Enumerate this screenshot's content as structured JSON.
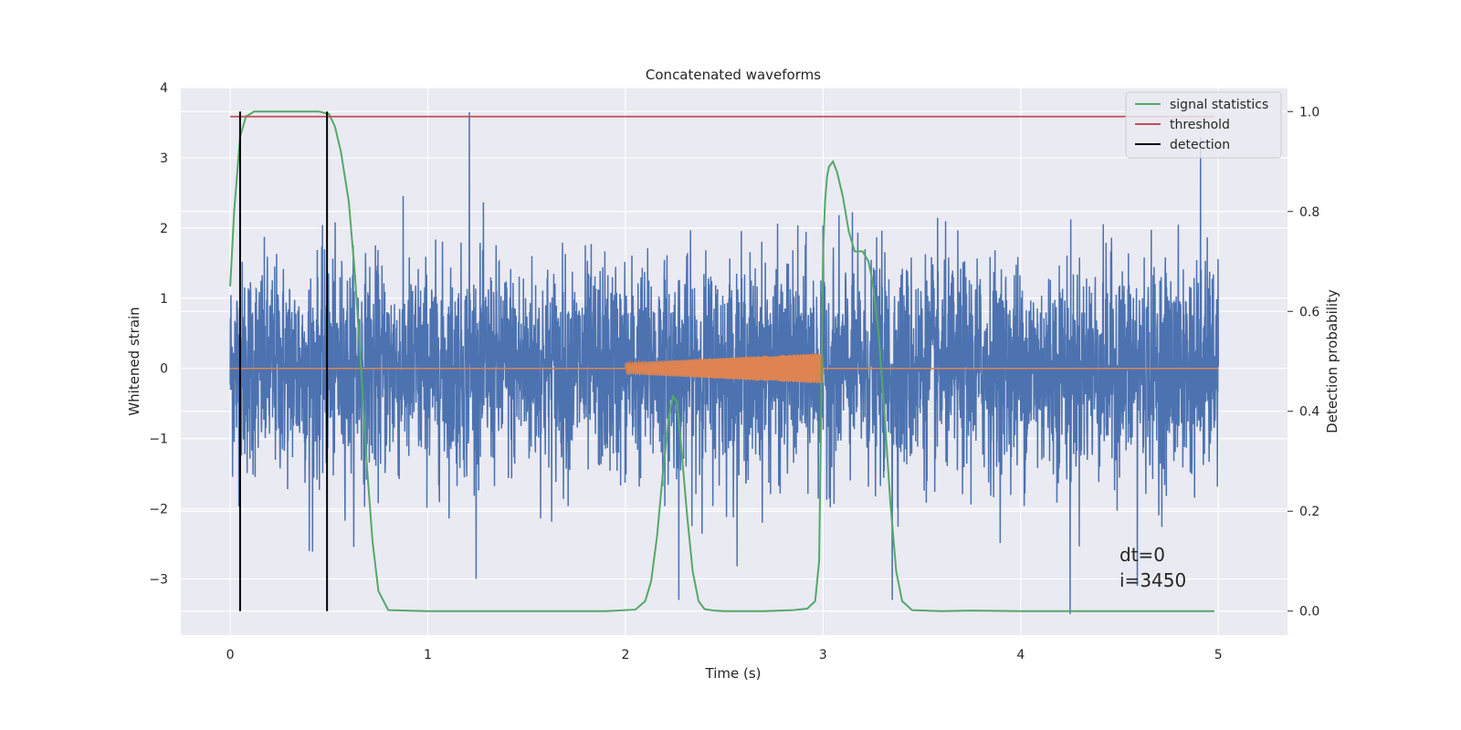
{
  "chart_data": {
    "type": "line",
    "title": "Concatenated waveforms",
    "xlabel": "Time (s)",
    "ylabel": "Whitened strain",
    "y2label": "Detection probability",
    "xlim": [
      -0.25,
      5.35
    ],
    "ylim": [
      -3.8,
      4.0
    ],
    "y2lim": [
      -0.048,
      1.048
    ],
    "xticks": [
      0,
      1,
      2,
      3,
      4,
      5
    ],
    "yticks": [
      -3,
      -2,
      -1,
      0,
      1,
      2,
      3,
      4
    ],
    "y2ticks": [
      0.0,
      0.2,
      0.4,
      0.6,
      0.8,
      1.0
    ],
    "xtick_labels": [
      "0",
      "1",
      "2",
      "3",
      "4",
      "5"
    ],
    "ytick_labels": [
      "−3",
      "−2",
      "−1",
      "0",
      "1",
      "2",
      "3",
      "4"
    ],
    "y2tick_labels": [
      "0.0",
      "0.2",
      "0.4",
      "0.6",
      "0.8",
      "1.0"
    ],
    "grid": true,
    "legend_position": "top-right",
    "legend": [
      "signal statistics",
      "threshold",
      "detection"
    ],
    "colors": {
      "strain": "#4c72b0",
      "template": "#dd8452",
      "signal_statistics": "#55a868",
      "threshold": "#c44e52",
      "detection": "#000000",
      "plot_bg": "#eaeaf2",
      "grid": "#ffffff"
    },
    "series": [
      {
        "name": "signal statistics",
        "axis": "right",
        "x": [
          0.0,
          0.02,
          0.05,
          0.08,
          0.12,
          0.2,
          0.3,
          0.4,
          0.45,
          0.5,
          0.53,
          0.56,
          0.6,
          0.63,
          0.66,
          0.69,
          0.72,
          0.75,
          0.8,
          1.0,
          1.5,
          1.9,
          2.05,
          2.1,
          2.13,
          2.16,
          2.19,
          2.22,
          2.24,
          2.26,
          2.28,
          2.31,
          2.34,
          2.37,
          2.4,
          2.45,
          2.5,
          2.7,
          2.85,
          2.92,
          2.96,
          2.98,
          2.99,
          3.0,
          3.01,
          3.02,
          3.03,
          3.05,
          3.07,
          3.1,
          3.13,
          3.16,
          3.2,
          3.23,
          3.25,
          3.28,
          3.31,
          3.34,
          3.37,
          3.4,
          3.45,
          3.6,
          3.75,
          4.0,
          4.5,
          4.98
        ],
        "y": [
          0.65,
          0.8,
          0.95,
          0.99,
          1.0,
          1.0,
          1.0,
          1.0,
          1.0,
          0.995,
          0.97,
          0.92,
          0.82,
          0.68,
          0.5,
          0.3,
          0.14,
          0.04,
          0.002,
          0.0,
          0.0,
          0.0,
          0.003,
          0.02,
          0.06,
          0.15,
          0.28,
          0.39,
          0.43,
          0.42,
          0.34,
          0.2,
          0.08,
          0.02,
          0.004,
          0.001,
          0.0,
          0.0,
          0.002,
          0.005,
          0.02,
          0.1,
          0.4,
          0.72,
          0.82,
          0.87,
          0.89,
          0.9,
          0.88,
          0.83,
          0.76,
          0.72,
          0.72,
          0.7,
          0.66,
          0.56,
          0.4,
          0.22,
          0.08,
          0.02,
          0.002,
          0.0,
          0.001,
          0.0,
          0.0,
          0.0
        ]
      },
      {
        "name": "threshold",
        "axis": "right",
        "x": [
          0.0,
          4.98
        ],
        "y": [
          0.99,
          0.99
        ]
      },
      {
        "name": "detection",
        "axis": "right",
        "x": [
          0.05,
          0.49
        ],
        "y_range": [
          0.0,
          1.0
        ]
      },
      {
        "name": "",
        "axis": "left",
        "kind": "whitened strain noise",
        "x_range": [
          0.0,
          5.0
        ],
        "amplitude_rms": 0.75,
        "peaks": [
          {
            "x": 1.21,
            "y": 3.65
          },
          {
            "x": 4.25,
            "y": -3.5
          },
          {
            "x": 4.91,
            "y": 3.3
          },
          {
            "x": 0.4,
            "y": -2.6
          },
          {
            "x": 2.27,
            "y": -3.3
          },
          {
            "x": 3.35,
            "y": -3.3
          },
          {
            "x": 4.59,
            "y": -3.1
          }
        ]
      },
      {
        "name": "",
        "axis": "left",
        "kind": "injected chirp",
        "x_range": [
          2.0,
          3.0
        ],
        "amplitude_range": [
          0.08,
          0.22
        ],
        "baseline": 0
      }
    ],
    "annotations": [
      "dt=0",
      "i=3450"
    ]
  }
}
